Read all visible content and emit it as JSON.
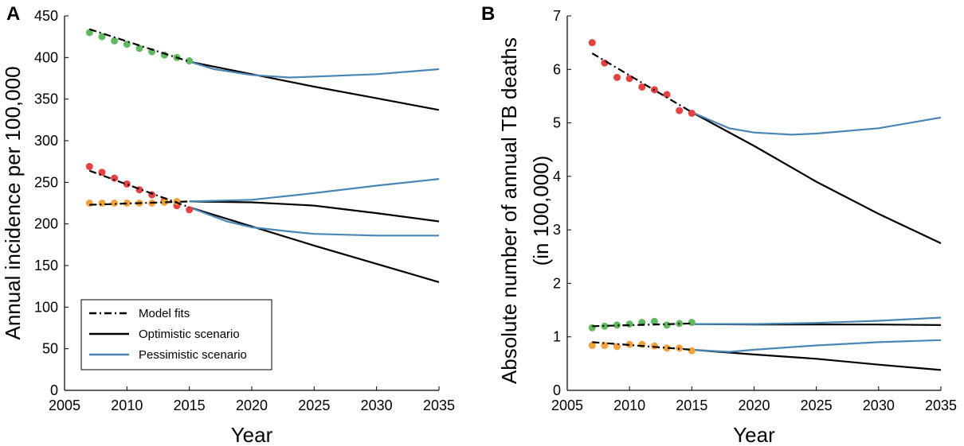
{
  "chart_data": [
    {
      "type": "line",
      "panel_label": "A",
      "xlabel": "Year",
      "ylabel": "Annual incidence per 100,000",
      "xlim": [
        2005,
        2035
      ],
      "ylim": [
        0,
        450
      ],
      "xticks": [
        2005,
        2010,
        2015,
        2020,
        2025,
        2030,
        2035
      ],
      "yticks": [
        0,
        50,
        100,
        150,
        200,
        250,
        300,
        350,
        400,
        450
      ],
      "legend": {
        "placement": "bottom-left",
        "entries": [
          {
            "label": "Model fits",
            "style": "dashdot",
            "color": "#000000"
          },
          {
            "label": "Optimistic scenario",
            "style": "solid",
            "color": "#000000"
          },
          {
            "label": "Pessimistic scenario",
            "style": "solid",
            "color": "#4a86b5"
          }
        ]
      },
      "groups": [
        {
          "name": "green",
          "marker_color": "#5dbb5d",
          "observed": {
            "x": [
              2007,
              2008,
              2009,
              2010,
              2011,
              2012,
              2013,
              2014,
              2015
            ],
            "y": [
              430,
              425,
              420,
              416,
              411,
              407,
              403,
              400,
              396
            ]
          },
          "fit": {
            "x": [
              2007,
              2015
            ],
            "y": [
              434,
              395
            ]
          },
          "optimistic": {
            "x": [
              2015,
              2020,
              2025,
              2030,
              2035
            ],
            "y": [
              395,
              380,
              365,
              351,
              337
            ]
          },
          "pessimistic": {
            "x": [
              2015,
              2017,
              2020,
              2023,
              2025,
              2030,
              2035
            ],
            "y": [
              395,
              386,
              379,
              376,
              377,
              380,
              386
            ]
          }
        },
        {
          "name": "red",
          "marker_color": "#e8403f",
          "observed": {
            "x": [
              2007,
              2008,
              2009,
              2010,
              2011,
              2012,
              2013,
              2014,
              2015
            ],
            "y": [
              269,
              262,
              255,
              248,
              241,
              235,
              228,
              222,
              217
            ]
          },
          "fit": {
            "x": [
              2007,
              2015
            ],
            "y": [
              264,
              220
            ]
          },
          "optimistic": {
            "x": [
              2015,
              2020,
              2025,
              2030,
              2035
            ],
            "y": [
              220,
              197,
              174,
              152,
              130
            ]
          },
          "pessimistic": {
            "x": [
              2015,
              2018,
              2020,
              2023,
              2025,
              2030,
              2035
            ],
            "y": [
              220,
              203,
              196,
              191,
              188,
              186,
              186
            ]
          }
        },
        {
          "name": "orange",
          "marker_color": "#f4a236",
          "observed": {
            "x": [
              2007,
              2008,
              2009,
              2010,
              2011,
              2012,
              2013,
              2014
            ],
            "y": [
              225,
              225,
              225,
              225,
              225,
              225,
              226,
              227
            ]
          },
          "fit": {
            "x": [
              2007,
              2015
            ],
            "y": [
              223,
              227
            ]
          },
          "optimistic": {
            "x": [
              2015,
              2020,
              2025,
              2030,
              2035
            ],
            "y": [
              227,
              226,
              222,
              213,
              203
            ]
          },
          "pessimistic": {
            "x": [
              2015,
              2020,
              2025,
              2030,
              2035
            ],
            "y": [
              227,
              229,
              237,
              246,
              254
            ]
          }
        }
      ]
    },
    {
      "type": "line",
      "panel_label": "B",
      "xlabel": "Year",
      "ylabel_line1": "Absolute number of annual TB deaths",
      "ylabel_line2": "(in 100,000)",
      "xlim": [
        2005,
        2035
      ],
      "ylim": [
        0,
        7
      ],
      "xticks": [
        2005,
        2010,
        2015,
        2020,
        2025,
        2030,
        2035
      ],
      "yticks": [
        0,
        1,
        2,
        3,
        4,
        5,
        6,
        7
      ],
      "groups": [
        {
          "name": "red",
          "marker_color": "#e8403f",
          "observed": {
            "x": [
              2007,
              2008,
              2009,
              2010,
              2011,
              2012,
              2013,
              2014,
              2015
            ],
            "y": [
              6.5,
              6.12,
              5.85,
              5.83,
              5.67,
              5.62,
              5.53,
              5.23,
              5.18
            ]
          },
          "fit": {
            "x": [
              2007,
              2015
            ],
            "y": [
              6.3,
              5.2
            ]
          },
          "optimistic": {
            "x": [
              2015,
              2020,
              2025,
              2030,
              2035
            ],
            "y": [
              5.2,
              4.57,
              3.9,
              3.3,
              2.75
            ]
          },
          "pessimistic": {
            "x": [
              2015,
              2017,
              2018,
              2020,
              2023,
              2025,
              2030,
              2035
            ],
            "y": [
              5.2,
              5.0,
              4.9,
              4.82,
              4.78,
              4.8,
              4.9,
              5.1
            ]
          }
        },
        {
          "name": "green",
          "marker_color": "#5dbb5d",
          "observed": {
            "x": [
              2007,
              2008,
              2009,
              2010,
              2011,
              2012,
              2013,
              2014,
              2015
            ],
            "y": [
              1.17,
              1.2,
              1.22,
              1.24,
              1.27,
              1.29,
              1.22,
              1.25,
              1.27
            ]
          },
          "fit": {
            "x": [
              2007,
              2015
            ],
            "y": [
              1.2,
              1.25
            ]
          },
          "optimistic": {
            "x": [
              2015,
              2020,
              2025,
              2030,
              2035
            ],
            "y": [
              1.24,
              1.23,
              1.23,
              1.23,
              1.22
            ]
          },
          "pessimistic": {
            "x": [
              2015,
              2020,
              2025,
              2030,
              2035
            ],
            "y": [
              1.24,
              1.24,
              1.26,
              1.3,
              1.36
            ]
          }
        },
        {
          "name": "orange",
          "marker_color": "#f4a236",
          "observed": {
            "x": [
              2007,
              2008,
              2009,
              2010,
              2011,
              2012,
              2013,
              2014,
              2015
            ],
            "y": [
              0.84,
              0.84,
              0.82,
              0.86,
              0.86,
              0.83,
              0.79,
              0.79,
              0.74
            ]
          },
          "fit": {
            "x": [
              2007,
              2015
            ],
            "y": [
              0.9,
              0.76
            ]
          },
          "optimistic": {
            "x": [
              2015,
              2020,
              2025,
              2030,
              2035
            ],
            "y": [
              0.76,
              0.67,
              0.59,
              0.48,
              0.38
            ]
          },
          "pessimistic": {
            "x": [
              2015,
              2018,
              2020,
              2025,
              2030,
              2035
            ],
            "y": [
              0.76,
              0.72,
              0.76,
              0.84,
              0.9,
              0.94
            ]
          }
        }
      ]
    }
  ]
}
